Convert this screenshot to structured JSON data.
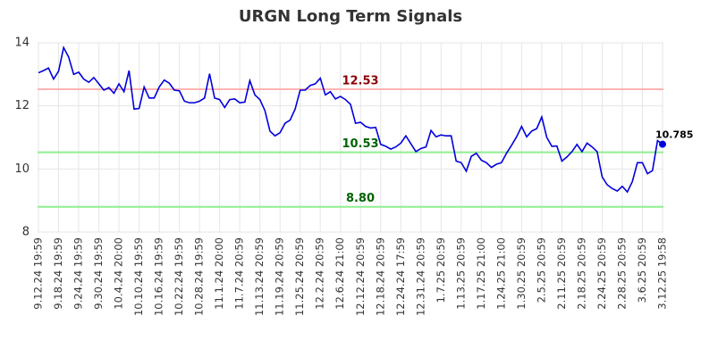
{
  "chart_data": {
    "type": "line",
    "title": "URGN Long Term Signals",
    "categories": [
      "9.12.24 19:59",
      null,
      null,
      null,
      "9.18.24 19:59",
      null,
      null,
      null,
      "9.24.24 19:59",
      null,
      null,
      null,
      "9.30.24 19:59",
      null,
      null,
      null,
      "10.4.24 20:00",
      null,
      null,
      null,
      "10.10.24 19:59",
      null,
      null,
      null,
      "10.16.24 19:59",
      null,
      null,
      null,
      "10.22.24 19:59",
      null,
      null,
      null,
      "10.28.24 19:59",
      null,
      null,
      null,
      "11.1.24 20:00",
      null,
      null,
      null,
      "11.7.24 20:59",
      null,
      null,
      null,
      "11.13.24 20:59",
      null,
      null,
      null,
      "11.19.24 20:59",
      null,
      null,
      null,
      "11.25.24 20:59",
      null,
      null,
      null,
      "12.2.24 20:59",
      null,
      null,
      null,
      "12.6.24 21:00",
      null,
      null,
      null,
      "12.12.24 20:59",
      null,
      null,
      null,
      "12.18.24 20:59",
      null,
      null,
      null,
      "12.24.24 17:59",
      null,
      null,
      null,
      "12.31.24 20:59",
      null,
      null,
      null,
      "1.7.25 20:59",
      null,
      null,
      null,
      "1.13.25 20:59",
      null,
      null,
      null,
      "1.17.25 21:00",
      null,
      null,
      null,
      "1.24.25 21:00",
      null,
      null,
      null,
      "1.30.25 20:59",
      null,
      null,
      null,
      "2.5.25 20:59",
      null,
      null,
      null,
      "2.11.25 20:59",
      null,
      null,
      null,
      "2.18.25 20:59",
      null,
      null,
      null,
      "2.24.25 20:59",
      null,
      null,
      null,
      "2.28.25 20:59",
      null,
      null,
      null,
      "3.6.25 20:59",
      null,
      null,
      null,
      "3.12.25 19:58"
    ],
    "series": [
      {
        "color": "#0000dd",
        "values": [
          13.05,
          13.12,
          13.2,
          12.85,
          13.1,
          13.85,
          13.55,
          13.0,
          13.07,
          12.85,
          12.75,
          12.9,
          12.7,
          12.5,
          12.58,
          12.4,
          12.7,
          12.45,
          13.12,
          11.9,
          11.92,
          12.6,
          12.25,
          12.25,
          12.6,
          12.82,
          12.72,
          12.5,
          12.48,
          12.15,
          12.1,
          12.1,
          12.15,
          12.25,
          13.02,
          12.25,
          12.2,
          11.95,
          12.2,
          12.22,
          12.1,
          12.12,
          12.8,
          12.35,
          12.2,
          11.85,
          11.2,
          11.05,
          11.15,
          11.45,
          11.55,
          11.9,
          12.5,
          12.5,
          12.65,
          12.7,
          12.88,
          12.35,
          12.45,
          12.22,
          12.3,
          12.2,
          12.05,
          11.45,
          11.48,
          11.35,
          11.3,
          11.32,
          10.78,
          10.72,
          10.63,
          10.7,
          10.82,
          11.05,
          10.8,
          10.55,
          10.65,
          10.7,
          11.22,
          11.02,
          11.08,
          11.05,
          11.05,
          10.25,
          10.2,
          9.93,
          10.4,
          10.5,
          10.28,
          10.2,
          10.05,
          10.15,
          10.2,
          10.5,
          10.75,
          11.02,
          11.35,
          11.02,
          11.2,
          11.28,
          11.65,
          11.0,
          10.72,
          10.73,
          10.25,
          10.38,
          10.55,
          10.78,
          10.55,
          10.82,
          10.7,
          10.55,
          9.75,
          9.5,
          9.38,
          9.3,
          9.45,
          9.27,
          9.6,
          10.2,
          10.2,
          9.85,
          9.95,
          10.9,
          10.785
        ]
      }
    ],
    "last_value_label": "10.785",
    "hlines": [
      {
        "value": 12.53,
        "label": "12.53",
        "color": "#ffb3b3",
        "label_color": "#8b0000"
      },
      {
        "value": 10.53,
        "label": "10.53",
        "color": "#90ee90",
        "label_color": "#006400"
      },
      {
        "value": 8.8,
        "label": "8.80",
        "color": "#90ee90",
        "label_color": "#006400"
      }
    ],
    "ylim": [
      8,
      14
    ],
    "yticks": [
      8,
      10,
      12,
      14
    ],
    "grid": true
  }
}
